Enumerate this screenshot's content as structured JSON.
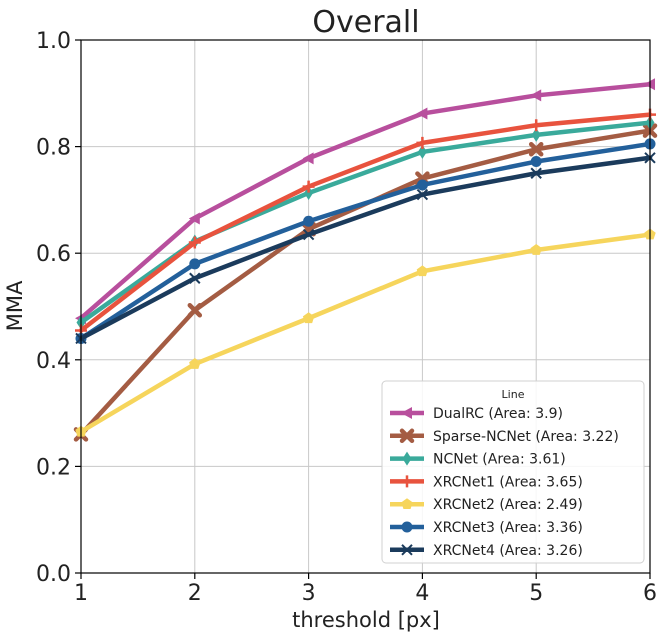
{
  "chart_data": {
    "type": "line",
    "title": "Overall",
    "xlabel": "threshold [px]",
    "ylabel": "MMA",
    "x": [
      1,
      2,
      3,
      4,
      5,
      6
    ],
    "xlim": [
      1,
      6
    ],
    "ylim": [
      0.0,
      1.0
    ],
    "xticks": [
      "1",
      "2",
      "3",
      "4",
      "5",
      "6"
    ],
    "yticks": [
      "0.0",
      "0.2",
      "0.4",
      "0.6",
      "0.8",
      "1.0"
    ],
    "grid": true,
    "legend": {
      "title": "Line",
      "position": "lower-right"
    },
    "series": [
      {
        "name": "DualRC (Area: 3.9)",
        "marker": "triangle-left",
        "color": "#b84f9d",
        "values": [
          0.478,
          0.665,
          0.778,
          0.862,
          0.896,
          0.917
        ]
      },
      {
        "name": "Sparse-NCNet (Area: 3.22)",
        "marker": "x-thick",
        "color": "#a45c43",
        "values": [
          0.26,
          0.493,
          0.645,
          0.74,
          0.795,
          0.83
        ]
      },
      {
        "name": "NCNet (Area: 3.61)",
        "marker": "thin-diamond",
        "color": "#3aaa9b",
        "values": [
          0.47,
          0.622,
          0.713,
          0.79,
          0.822,
          0.845
        ]
      },
      {
        "name": "XRCNet1 (Area: 3.65)",
        "marker": "plus",
        "color": "#e8533e",
        "values": [
          0.455,
          0.62,
          0.725,
          0.807,
          0.84,
          0.86
        ]
      },
      {
        "name": "XRCNet2 (Area: 2.49)",
        "marker": "pentagon",
        "color": "#f6d55c",
        "values": [
          0.265,
          0.392,
          0.478,
          0.566,
          0.606,
          0.635
        ]
      },
      {
        "name": "XRCNet3 (Area: 3.36)",
        "marker": "circle",
        "color": "#23609b",
        "values": [
          0.44,
          0.58,
          0.66,
          0.728,
          0.772,
          0.805
        ]
      },
      {
        "name": "XRCNet4 (Area: 3.26)",
        "marker": "x",
        "color": "#1b3b5c",
        "values": [
          0.44,
          0.553,
          0.635,
          0.71,
          0.75,
          0.779
        ]
      }
    ]
  }
}
